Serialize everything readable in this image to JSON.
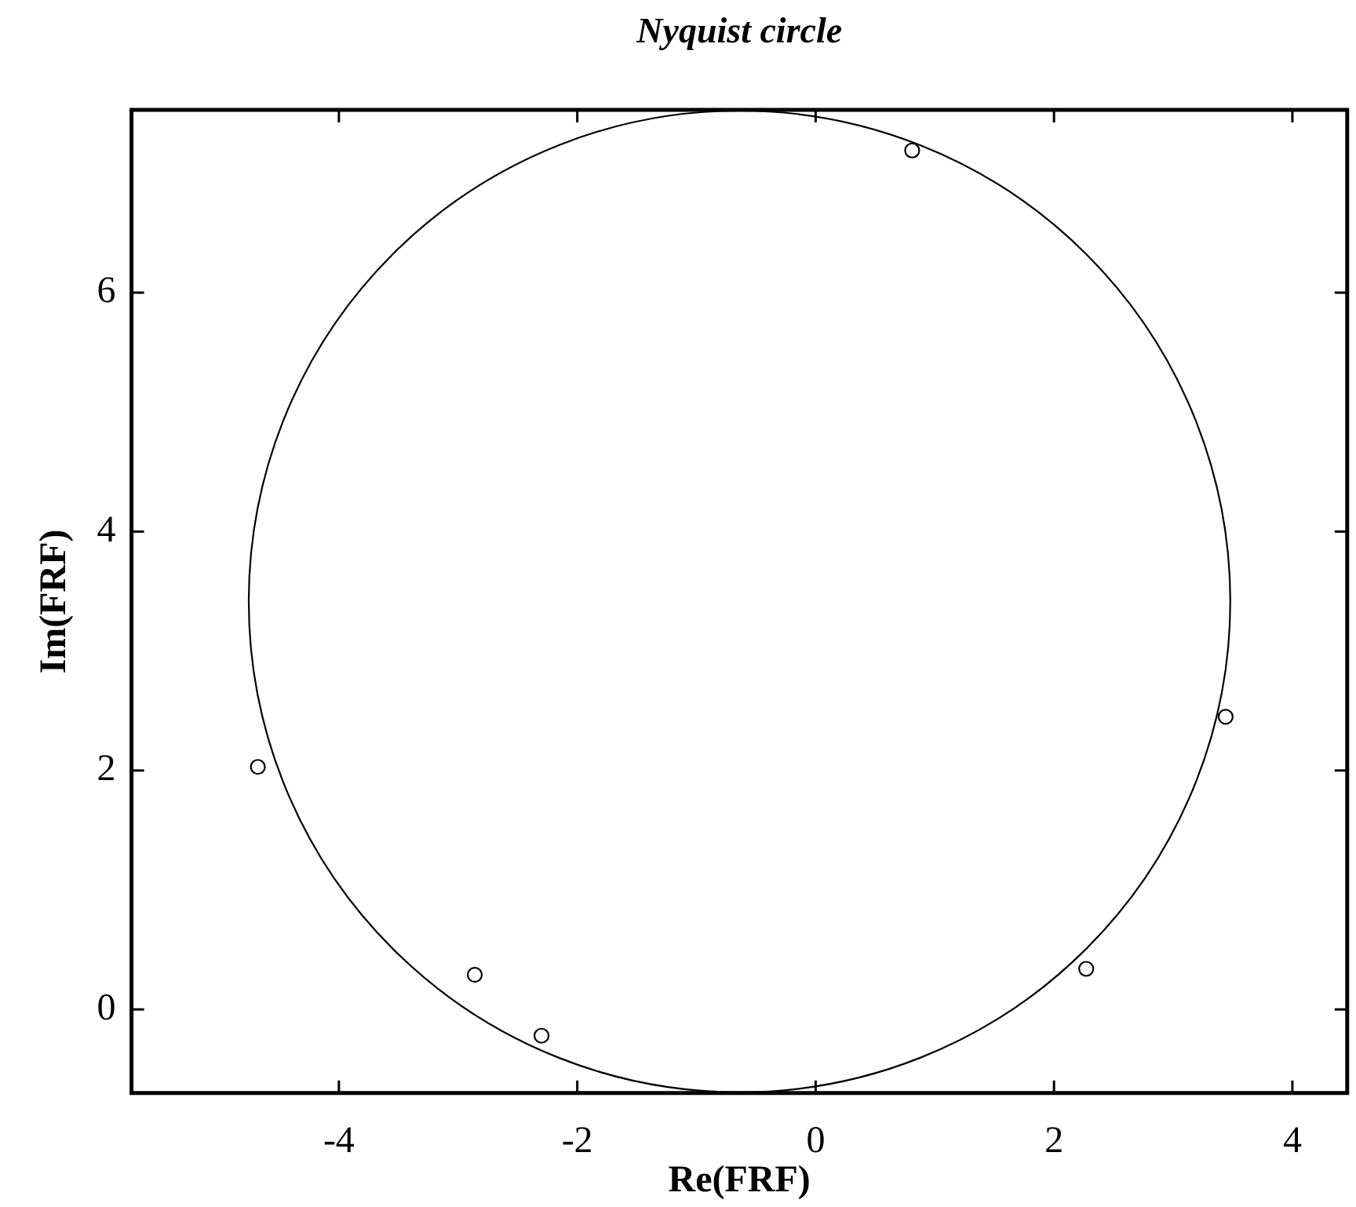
{
  "chart_data": {
    "type": "scatter",
    "title": "Nyquist circle",
    "xlabel": "Re(FRF)",
    "ylabel": "Im(FRF)",
    "xlim": [
      -5.74,
      4.46
    ],
    "ylim": [
      -0.7,
      7.53
    ],
    "xticks": [
      -4,
      -2,
      0,
      2,
      4
    ],
    "yticks": [
      0,
      2,
      4,
      6
    ],
    "marker": "circle",
    "series": [
      {
        "type": "scatter",
        "color": "#000000",
        "x": [
          -4.68,
          -2.86,
          -2.3,
          0.81,
          2.27,
          3.44
        ],
        "values": [
          2.03,
          0.29,
          -0.22,
          7.19,
          0.34,
          2.45
        ]
      }
    ]
  }
}
